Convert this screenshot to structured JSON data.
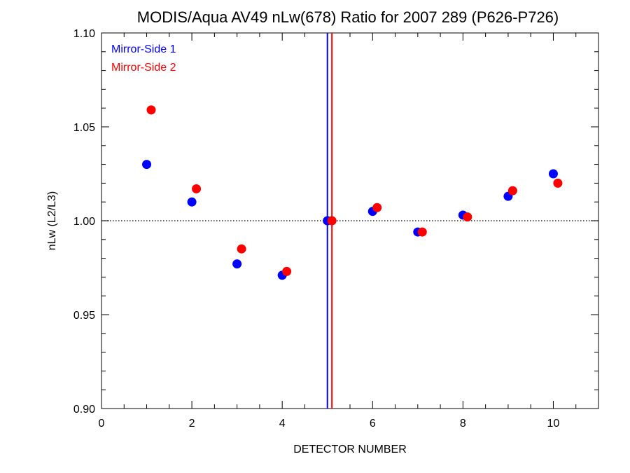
{
  "chart_data": {
    "type": "scatter",
    "title": "MODIS/Aqua AV49 nLw(678) Ratio for 2007 289 (P626-P726)",
    "xlabel": "DETECTOR NUMBER",
    "ylabel": "nLw (L2/L3)",
    "xlim": [
      0,
      11
    ],
    "ylim": [
      0.9,
      1.1
    ],
    "xticks": [
      0,
      2,
      4,
      6,
      8,
      10
    ],
    "xtick_labels": [
      "0",
      "2",
      "4",
      "6",
      "8",
      "10"
    ],
    "yticks": [
      0.9,
      0.95,
      1.0,
      1.05,
      1.1
    ],
    "ytick_labels": [
      "0.90",
      "0.95",
      "1.00",
      "1.05",
      "1.10"
    ],
    "reference_line_y": 1.0,
    "vertical_lines": [
      {
        "x": 5.0,
        "color": "#0000ff"
      },
      {
        "x": 5.1,
        "color": "#ff0000"
      }
    ],
    "legend_position": "top-left",
    "grid": false,
    "series": [
      {
        "name": "Mirror-Side 1",
        "color": "#0000ff",
        "x": [
          1,
          2,
          3,
          4,
          5,
          6,
          7,
          8,
          9,
          10
        ],
        "y": [
          1.03,
          1.01,
          0.977,
          0.971,
          1.0,
          1.005,
          0.994,
          1.003,
          1.013,
          1.025
        ]
      },
      {
        "name": "Mirror-Side 2",
        "color": "#ff0000",
        "x": [
          1.1,
          2.1,
          3.1,
          4.1,
          5.1,
          6.1,
          7.1,
          8.1,
          9.1,
          10.1
        ],
        "y": [
          1.059,
          1.017,
          0.985,
          0.973,
          1.0,
          1.007,
          0.994,
          1.002,
          1.016,
          1.02
        ]
      }
    ]
  }
}
